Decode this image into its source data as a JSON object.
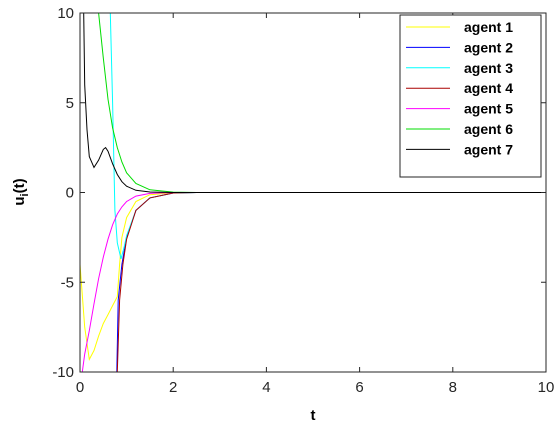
{
  "chart_data": {
    "type": "line",
    "xlabel": "t",
    "ylabel": "u",
    "ylabel_sub": "i",
    "ylabel_tail": "(t)",
    "xlim": [
      0,
      10
    ],
    "ylim": [
      -10,
      10
    ],
    "xticks": [
      0,
      2,
      4,
      6,
      8,
      10
    ],
    "yticks": [
      -10,
      -5,
      0,
      5,
      10
    ],
    "grid": false,
    "legend_position": "top-right",
    "series": [
      {
        "name": "agent 1",
        "color": "#ffff00",
        "points": [
          [
            0,
            -4
          ],
          [
            0.1,
            -7.5
          ],
          [
            0.2,
            -9.3
          ],
          [
            0.3,
            -8.8
          ],
          [
            0.4,
            -8
          ],
          [
            0.5,
            -7.3
          ],
          [
            0.6,
            -6.8
          ],
          [
            0.7,
            -6.3
          ],
          [
            0.8,
            -5.8
          ],
          [
            0.85,
            -4
          ],
          [
            0.9,
            -2.5
          ],
          [
            1.0,
            -1.4
          ],
          [
            1.2,
            -0.5
          ],
          [
            1.5,
            -0.12
          ],
          [
            2,
            -0.01
          ],
          [
            2.5,
            0
          ],
          [
            10,
            0
          ]
        ]
      },
      {
        "name": "agent 2",
        "color": "#0000ff",
        "points": [
          [
            0,
            -10
          ],
          [
            0.79,
            -10
          ],
          [
            0.82,
            -6
          ],
          [
            0.9,
            -4
          ],
          [
            1.0,
            -2.5
          ],
          [
            1.2,
            -1
          ],
          [
            1.5,
            -0.3
          ],
          [
            2,
            -0.03
          ],
          [
            2.5,
            0
          ],
          [
            10,
            0
          ]
        ]
      },
      {
        "name": "agent 3",
        "color": "#00ffff",
        "points": [
          [
            0,
            10
          ],
          [
            0.65,
            10
          ],
          [
            0.7,
            5
          ],
          [
            0.75,
            -1
          ],
          [
            0.8,
            -2.8
          ],
          [
            0.88,
            -3.7
          ],
          [
            0.95,
            -3
          ],
          [
            1.0,
            -2.4
          ],
          [
            1.2,
            -1
          ],
          [
            1.5,
            -0.3
          ],
          [
            2,
            -0.03
          ],
          [
            2.5,
            0
          ],
          [
            10,
            0
          ]
        ]
      },
      {
        "name": "agent 4",
        "color": "#aa0000",
        "points": [
          [
            0,
            -10
          ],
          [
            0.8,
            -10
          ],
          [
            0.85,
            -6
          ],
          [
            0.92,
            -4
          ],
          [
            1.0,
            -2.6
          ],
          [
            1.2,
            -1
          ],
          [
            1.5,
            -0.3
          ],
          [
            2,
            -0.03
          ],
          [
            2.5,
            0
          ],
          [
            10,
            0
          ]
        ]
      },
      {
        "name": "agent 5",
        "color": "#ff00ff",
        "points": [
          [
            0,
            -10
          ],
          [
            0.05,
            -10
          ],
          [
            0.1,
            -9
          ],
          [
            0.2,
            -7.7
          ],
          [
            0.3,
            -6.2
          ],
          [
            0.4,
            -4.8
          ],
          [
            0.5,
            -3.6
          ],
          [
            0.6,
            -2.6
          ],
          [
            0.7,
            -1.8
          ],
          [
            0.8,
            -1.2
          ],
          [
            0.9,
            -0.8
          ],
          [
            1.0,
            -0.5
          ],
          [
            1.2,
            -0.2
          ],
          [
            1.5,
            -0.05
          ],
          [
            2,
            0
          ],
          [
            10,
            0
          ]
        ]
      },
      {
        "name": "agent 6",
        "color": "#00dd00",
        "points": [
          [
            0,
            10
          ],
          [
            0.4,
            10
          ],
          [
            0.5,
            7.5
          ],
          [
            0.6,
            5.2
          ],
          [
            0.7,
            3.6
          ],
          [
            0.8,
            2.5
          ],
          [
            0.9,
            1.7
          ],
          [
            1.0,
            1.1
          ],
          [
            1.2,
            0.5
          ],
          [
            1.5,
            0.15
          ],
          [
            2,
            0.02
          ],
          [
            2.5,
            0
          ],
          [
            10,
            0
          ]
        ]
      },
      {
        "name": "agent 7",
        "color": "#000000",
        "points": [
          [
            0.08,
            10
          ],
          [
            0.1,
            6
          ],
          [
            0.15,
            3.5
          ],
          [
            0.2,
            2
          ],
          [
            0.3,
            1.4
          ],
          [
            0.4,
            1.8
          ],
          [
            0.5,
            2.4
          ],
          [
            0.55,
            2.5
          ],
          [
            0.6,
            2.3
          ],
          [
            0.7,
            1.6
          ],
          [
            0.8,
            1
          ],
          [
            0.9,
            0.6
          ],
          [
            1.0,
            0.35
          ],
          [
            1.2,
            0.12
          ],
          [
            1.5,
            0.03
          ],
          [
            2,
            0
          ],
          [
            10,
            0
          ]
        ]
      }
    ]
  }
}
